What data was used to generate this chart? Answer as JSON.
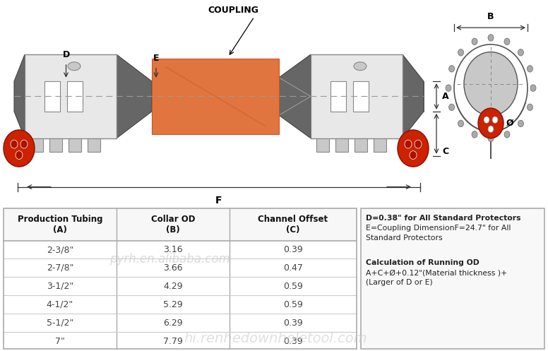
{
  "table_rows": [
    [
      "2-3/8\"",
      "3.16",
      "0.39"
    ],
    [
      "2-7/8\"",
      "3.66",
      "0.47"
    ],
    [
      "3-1/2\"",
      "4.29",
      "0.59"
    ],
    [
      "4-1/2\"",
      "5.29",
      "0.59"
    ],
    [
      "5-1/2\"",
      "6.29",
      "0.39"
    ],
    [
      "7\"",
      "7.79",
      "0.39"
    ]
  ],
  "notes_line1": "D=0.38\" for All Standard Protectors",
  "notes_line2": "E=Coupling DimensionF=24.7\" for All",
  "notes_line3": "Standard Protectors",
  "notes_line5": "Calculation of Running OD",
  "notes_line6": "A+C+Ø+0.12\"(Material thickness )+",
  "notes_line7": "(Larger of D or E)",
  "watermark1": "pyrh.en.alibaba.com",
  "watermark2": "hi.renhedownholetool.com",
  "bg_color": "#ffffff",
  "coupling_color": "#e07540",
  "tube_color": "#888888",
  "tube_dark": "#666666",
  "connector_light": "#e8e8e8",
  "connector_mid": "#c8c8c8",
  "connector_dark": "#b0b0b0",
  "red_accent": "#cc2200",
  "red_light": "#dd4422",
  "dim_color": "#333333",
  "line_color": "#555555"
}
